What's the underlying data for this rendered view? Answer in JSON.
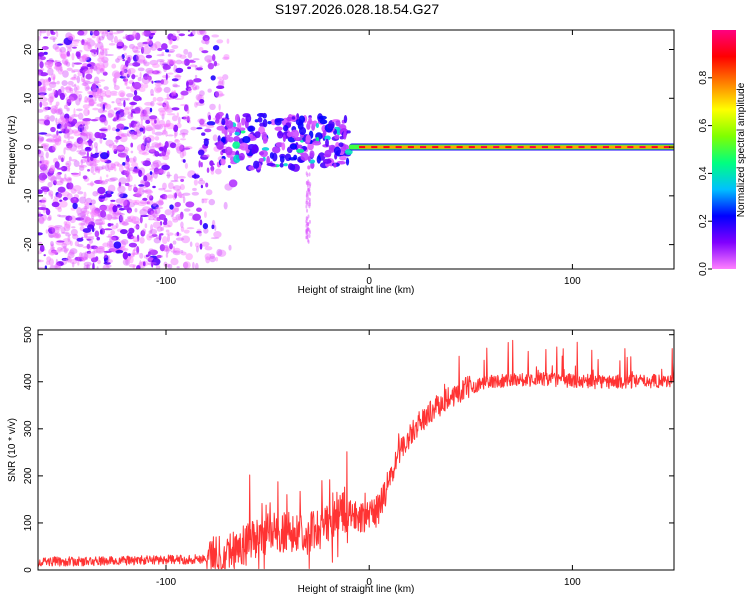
{
  "chart_data": [
    {
      "type": "heatmap",
      "title": "S197.2026.028.18.54.G27",
      "xlabel": "Height of straight line (km)",
      "ylabel": "Frequency (Hz)",
      "xlim": [
        -163,
        150
      ],
      "ylim": [
        -25,
        24
      ],
      "xticks": [
        -100,
        0,
        100
      ],
      "xticklabels": [
        "-100",
        "0",
        "100"
      ],
      "yticks": [
        20,
        10,
        0,
        -10,
        -20
      ],
      "yticklabels": [
        "20",
        "10",
        "0",
        "-10",
        "-20"
      ],
      "colorbar": {
        "label": "Normalized spectral amplitude",
        "range": [
          0,
          1
        ],
        "ticks": [
          0.0,
          0.2,
          0.4,
          0.6,
          0.8
        ],
        "ticklabels": [
          "0.0",
          "0.2",
          "0.4",
          "0.6",
          "0.8"
        ],
        "colors": [
          "#ff80ff",
          "#8000ff",
          "#0000ff",
          "#00c0ff",
          "#00ff80",
          "#80ff00",
          "#ffff00",
          "#ff8000",
          "#ff0000",
          "#ff0080"
        ]
      },
      "features": [
        {
          "name": "diffuse-noise",
          "x_range": [
            -163,
            -65
          ],
          "y_range": [
            -25,
            24
          ],
          "amplitude": 0.1
        },
        {
          "name": "turbulent-onset",
          "x_range": [
            -75,
            -10
          ],
          "y_range": [
            -5,
            10
          ],
          "amplitude": 0.35
        },
        {
          "name": "carrier-line",
          "x_range": [
            -10,
            150
          ],
          "y": 0,
          "amplitude": 0.95
        }
      ]
    },
    {
      "type": "line",
      "title": "",
      "xlabel": "Height of straight line (km)",
      "ylabel": "SNR (10 * v/v)",
      "xlim": [
        -163,
        150
      ],
      "ylim": [
        0,
        510
      ],
      "xticks": [
        -100,
        0,
        100
      ],
      "xticklabels": [
        "-100",
        "0",
        "100"
      ],
      "yticks": [
        0,
        100,
        200,
        300,
        400,
        500
      ],
      "yticklabels": [
        "0",
        "100",
        "200",
        "300",
        "400",
        "500"
      ],
      "color": "#ff3333",
      "series": [
        {
          "name": "SNR",
          "x": [
            -163,
            -140,
            -120,
            -100,
            -90,
            -80,
            -70,
            -60,
            -50,
            -40,
            -30,
            -25,
            -20,
            -15,
            -10,
            -5,
            0,
            5,
            10,
            15,
            20,
            25,
            30,
            40,
            50,
            60,
            70,
            80,
            90,
            100,
            110,
            120,
            130,
            140,
            150
          ],
          "y": [
            18,
            18,
            20,
            22,
            22,
            25,
            38,
            55,
            75,
            80,
            85,
            85,
            100,
            120,
            120,
            110,
            108,
            130,
            190,
            250,
            285,
            315,
            335,
            370,
            390,
            400,
            405,
            405,
            405,
            402,
            400,
            400,
            400,
            402,
            402
          ]
        }
      ]
    }
  ]
}
